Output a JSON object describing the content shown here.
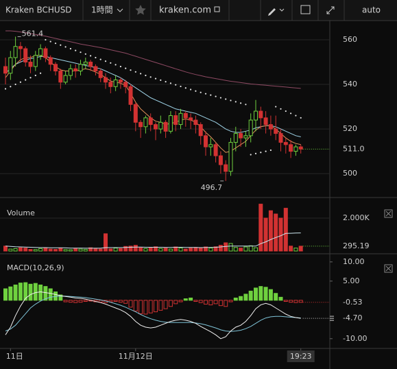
{
  "toolbar": {
    "symbol": "Kraken BCHUSD",
    "interval": "1時間",
    "site": "kraken.com",
    "scale": "auto"
  },
  "chart_data": [
    {
      "type": "candlestick",
      "open": [
        548,
        545,
        552,
        557,
        556,
        550,
        548,
        553,
        556,
        552,
        549,
        546,
        541,
        544,
        547,
        546,
        549,
        550,
        548,
        546,
        543,
        541,
        539,
        542,
        541,
        539,
        531,
        523,
        521,
        525,
        522,
        520,
        523,
        519,
        526,
        522,
        527,
        525,
        524,
        522,
        517,
        512,
        513,
        508,
        504,
        501,
        514,
        518,
        516,
        517,
        524,
        528,
        525,
        522,
        520,
        518,
        514,
        513,
        510,
        512
      ],
      "high": [
        552,
        555,
        561.4,
        559,
        557,
        553,
        555,
        558,
        557,
        553,
        550,
        547,
        546,
        549,
        549,
        551,
        552,
        551,
        549,
        547,
        545,
        543,
        544,
        543,
        542,
        540,
        532,
        524,
        526,
        527,
        523,
        526,
        524,
        528,
        528,
        529,
        528,
        527,
        526,
        523,
        519,
        516,
        514,
        510,
        506,
        516,
        521,
        520,
        519,
        527,
        533,
        530,
        528,
        526,
        526,
        520,
        516,
        515,
        513,
        513
      ],
      "low": [
        540,
        542,
        548,
        550,
        548,
        545,
        546,
        551,
        550,
        546,
        544,
        538,
        540,
        542,
        543,
        544,
        547,
        546,
        544,
        541,
        538,
        536,
        537,
        538,
        536,
        528,
        519,
        516,
        518,
        519,
        515,
        518,
        516,
        518,
        519,
        520,
        521,
        520,
        518,
        513,
        508,
        508,
        505,
        500,
        496.7,
        499,
        510,
        512,
        512,
        514,
        519,
        520,
        518,
        517,
        515,
        510,
        509,
        507,
        508,
        509
      ],
      "close": [
        545,
        552,
        557,
        556,
        550,
        548,
        553,
        556,
        552,
        549,
        546,
        541,
        544,
        547,
        546,
        549,
        550,
        548,
        546,
        543,
        541,
        539,
        542,
        541,
        539,
        531,
        523,
        521,
        525,
        522,
        520,
        523,
        519,
        526,
        522,
        527,
        525,
        524,
        522,
        517,
        512,
        513,
        508,
        504,
        501,
        514,
        518,
        516,
        517,
        524,
        528,
        525,
        522,
        520,
        518,
        514,
        513,
        510,
        512,
        511
      ],
      "last_label": "511.0",
      "up_color": "#6fd13f",
      "down_color": "#d23232",
      "ylim": [
        490.2,
        568.6
      ],
      "yticks": [
        500,
        520,
        540,
        560
      ],
      "grid": true,
      "lines": [
        {
          "color": "#8e4a63",
          "values": [
            564,
            564,
            563.8,
            563.5,
            563.2,
            562.8,
            562.4,
            562,
            561.6,
            561.1,
            560.6,
            560.1,
            559.6,
            559.1,
            558.6,
            558.1,
            557.7,
            557.3,
            556.9,
            556.5,
            556,
            555.5,
            555,
            554.5,
            554,
            553.3,
            552.6,
            551.9,
            551.2,
            550.5,
            549.8,
            549.1,
            548.4,
            547.7,
            547,
            546.3,
            545.6,
            545,
            544.4,
            543.9,
            543.4,
            543,
            542.6,
            542.2,
            541.8,
            541.4,
            541.1,
            540.8,
            540.5,
            540.2,
            540,
            539.8,
            539.6,
            539.4,
            539.2,
            539,
            538.8,
            538.6,
            538.4,
            538.2
          ]
        },
        {
          "color": "#9fd4e8",
          "values": [
            545,
            547,
            549,
            550,
            551,
            551.5,
            552,
            552.5,
            552.5,
            552,
            551.5,
            551,
            550.5,
            550,
            549.5,
            549,
            548.5,
            548,
            547.5,
            547,
            546,
            545,
            544,
            543,
            541.5,
            540,
            538.5,
            537,
            535.5,
            534,
            533,
            532,
            531,
            530,
            529,
            528.5,
            528,
            527.5,
            527,
            526,
            525,
            524,
            523,
            521.5,
            520,
            519,
            518.5,
            518.5,
            519,
            519.5,
            520.5,
            521,
            521.5,
            521.5,
            521,
            520,
            519,
            518,
            517,
            516.5
          ]
        },
        {
          "color": "#e0915a",
          "values": [
            543,
            546,
            549,
            551,
            552,
            552,
            553,
            553,
            552,
            550,
            548,
            546.5,
            546,
            546,
            546,
            546.5,
            547,
            546.5,
            545.5,
            544.5,
            543,
            541.5,
            541,
            540.5,
            539.5,
            536,
            532,
            529,
            527,
            525,
            523.5,
            523,
            522,
            522.5,
            523,
            524,
            524.5,
            524,
            523,
            521,
            518.5,
            516.5,
            514,
            511.5,
            509.5,
            510,
            511.5,
            513,
            514.5,
            517,
            519.5,
            521,
            521.5,
            521.5,
            520,
            518,
            516,
            514.5,
            513.5,
            513
          ]
        }
      ],
      "sar": {
        "color": "#e6e6e6",
        "values": [
          538,
          539,
          540,
          541,
          542,
          543,
          544,
          545,
          560,
          559.2,
          558.4,
          557.6,
          556.8,
          556,
          555.2,
          554.4,
          553.6,
          552.8,
          552,
          551.2,
          550.4,
          549.6,
          548.8,
          548,
          547.2,
          546.4,
          545.6,
          544.8,
          544,
          543.3,
          542.6,
          541.9,
          541.2,
          540.5,
          539.8,
          539.1,
          538.4,
          537.7,
          537,
          536.4,
          535.8,
          535.2,
          534.6,
          534,
          533.4,
          532.8,
          532.2,
          531.6,
          531,
          508.5,
          509,
          509.5,
          510,
          510.5,
          530,
          529,
          528,
          527,
          526,
          525
        ]
      },
      "high_label": 561.4,
      "low_label": 496.7,
      "xticks": [
        {
          "value": 1,
          "label": "11日"
        },
        {
          "value": 26,
          "label": "11月12日"
        },
        {
          "value": 59,
          "label": "19:23"
        }
      ]
    },
    {
      "type": "bar",
      "title": "Volume",
      "values": [
        300,
        120,
        150,
        200,
        180,
        100,
        90,
        150,
        200,
        120,
        100,
        180,
        90,
        80,
        150,
        120,
        100,
        200,
        150,
        120,
        1050,
        130,
        180,
        150,
        280,
        300,
        350,
        200,
        150,
        200,
        260,
        150,
        180,
        120,
        250,
        180,
        120,
        180,
        220,
        200,
        250,
        180,
        260,
        350,
        500,
        460,
        220,
        180,
        250,
        320,
        200,
        2850,
        2000,
        2450,
        2250,
        2000,
        2600,
        300,
        180,
        295.19
      ],
      "ylim": [
        0,
        2958
      ],
      "yticks": [
        {
          "value": 2000,
          "label": "2.000K"
        }
      ],
      "line": {
        "color": "#cfe8f0",
        "values": [
          300,
          280,
          260,
          250,
          240,
          230,
          220,
          210,
          210,
          200,
          200,
          200,
          190,
          180,
          180,
          180,
          170,
          170,
          170,
          170,
          210,
          210,
          210,
          210,
          220,
          230,
          240,
          240,
          230,
          230,
          230,
          230,
          220,
          220,
          230,
          230,
          220,
          220,
          220,
          210,
          220,
          220,
          230,
          250,
          280,
          300,
          300,
          300,
          300,
          300,
          300,
          450,
          560,
          700,
          820,
          930,
          1070,
          1080,
          1090,
          1100
        ]
      }
    },
    {
      "type": "macd",
      "title": "MACD(10,26,9)",
      "histogram": [
        3.0,
        3.5,
        4.0,
        4.5,
        4.6,
        4.2,
        4.4,
        4.0,
        3.6,
        3.0,
        2.2,
        1.4,
        -0.4,
        -0.5,
        -0.6,
        -0.5,
        -0.3,
        -0.2,
        -0.4,
        -0.5,
        -0.6,
        -0.4,
        -0.3,
        -0.5,
        -0.8,
        -1.8,
        -2.8,
        -3.5,
        -3.6,
        -3.3,
        -3.0,
        -2.6,
        -2.2,
        -1.6,
        -0.9,
        -0.4,
        0.4,
        0.6,
        -0.3,
        -0.6,
        -1.0,
        -1.2,
        -0.9,
        -1.4,
        -1.6,
        -0.4,
        0.6,
        1.0,
        1.6,
        2.4,
        3.2,
        3.6,
        3.4,
        2.8,
        1.8,
        0.8,
        -0.3,
        -0.5,
        -0.6,
        -0.53
      ],
      "histogram_last_label": "-0.53",
      "macd": {
        "color": "#f0f0f0",
        "values": [
          -9,
          -7,
          -4,
          -1.5,
          0.5,
          1.5,
          2,
          2.2,
          2,
          1.8,
          1.5,
          1.2,
          1,
          0.8,
          0.6,
          0.5,
          0.3,
          0,
          -0.3,
          -0.6,
          -1,
          -1.5,
          -2,
          -2.5,
          -3.2,
          -4.2,
          -5.5,
          -6.5,
          -7,
          -7.2,
          -7,
          -6.5,
          -6,
          -5.5,
          -5.2,
          -5,
          -5.2,
          -5.5,
          -6,
          -6.8,
          -7.5,
          -8.2,
          -9,
          -10,
          -9.5,
          -8,
          -7,
          -6.5,
          -5.5,
          -4,
          -2.2,
          -1.2,
          -0.8,
          -1.2,
          -2,
          -2.8,
          -3.6,
          -4.2,
          -4.5,
          -4.7
        ],
        "last_label": "-4.70"
      },
      "signal": {
        "color": "#7fc4d8",
        "values": [
          -8,
          -7.5,
          -6.5,
          -5,
          -3.5,
          -2,
          -1,
          -0.2,
          0.4,
          0.8,
          1,
          1.1,
          1.1,
          1,
          0.9,
          0.8,
          0.7,
          0.5,
          0.3,
          0.1,
          -0.2,
          -0.5,
          -0.9,
          -1.3,
          -1.8,
          -2.4,
          -3,
          -3.7,
          -4.3,
          -4.8,
          -5.2,
          -5.5,
          -5.7,
          -5.8,
          -5.8,
          -5.8,
          -5.8,
          -5.8,
          -5.9,
          -6.1,
          -6.4,
          -6.8,
          -7.2,
          -7.7,
          -8,
          -8.1,
          -8,
          -7.8,
          -7.4,
          -6.8,
          -6,
          -5.2,
          -4.6,
          -4.3,
          -4.2,
          -4.2,
          -4.3,
          -4.4,
          -4.5,
          -4.6
        ]
      },
      "ylim": [
        -12,
        11.4
      ],
      "yticks": [
        {
          "value": 10,
          "label": "10.00"
        },
        {
          "value": 5,
          "label": "5.00"
        },
        {
          "value": -10,
          "label": "-10.00"
        }
      ]
    }
  ]
}
